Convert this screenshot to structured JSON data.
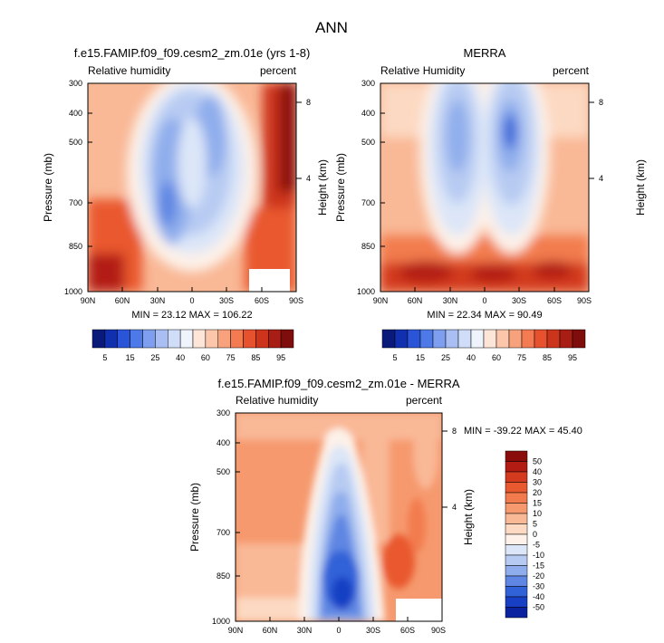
{
  "figure_title": "ANN",
  "chart_data": [
    {
      "type": "heatmap",
      "title": "f.e15.FAMIP.f09_f09.cesm2_zm.01e (yrs 1-8)",
      "subtitle_left": "Relative humidity",
      "subtitle_right": "percent",
      "ylabel": "Pressure (mb)",
      "ylabel_right": "Height (km)",
      "x_ticks": [
        "90N",
        "60N",
        "30N",
        "0",
        "30S",
        "60S",
        "90S"
      ],
      "y_ticks": [
        "300",
        "400",
        "500",
        "700",
        "850",
        "1000"
      ],
      "y_ticks_right": [
        "8",
        "4"
      ],
      "ylim": [
        1000,
        300
      ],
      "min_max_label": "MIN = 23.12  MAX = 106.22",
      "min": 23.12,
      "max": 106.22,
      "colorbar_labels": [
        "5",
        "15",
        "25",
        "40",
        "60",
        "75",
        "85",
        "95"
      ],
      "colorbar_colors": [
        "#0a1a7a",
        "#1030b0",
        "#2a55d8",
        "#4d7ae8",
        "#7e9eef",
        "#a9bff4",
        "#d0ddf8",
        "#eef3fc",
        "#fde6d8",
        "#fbc6aa",
        "#f8a27d",
        "#f47a52",
        "#e8512e",
        "#cc341c",
        "#a81e14",
        "#7e0d0b"
      ]
    },
    {
      "type": "heatmap",
      "title": "MERRA",
      "subtitle_left": "Relative Humidity",
      "subtitle_right": "percent",
      "ylabel": "Pressure (mb)",
      "ylabel_right": "Height (km)",
      "x_ticks": [
        "90N",
        "60N",
        "30N",
        "0",
        "30S",
        "60S",
        "90S"
      ],
      "y_ticks": [
        "300",
        "400",
        "500",
        "700",
        "850",
        "1000"
      ],
      "y_ticks_right": [
        "8",
        "4"
      ],
      "ylim": [
        1000,
        300
      ],
      "min_max_label": "MIN = 22.34  MAX = 90.49",
      "min": 22.34,
      "max": 90.49,
      "colorbar_labels": [
        "5",
        "15",
        "25",
        "40",
        "60",
        "75",
        "85",
        "95"
      ],
      "colorbar_colors": [
        "#0a1a7a",
        "#1030b0",
        "#2a55d8",
        "#4d7ae8",
        "#7e9eef",
        "#a9bff4",
        "#d0ddf8",
        "#eef3fc",
        "#fde6d8",
        "#fbc6aa",
        "#f8a27d",
        "#f47a52",
        "#e8512e",
        "#cc341c",
        "#a81e14",
        "#7e0d0b"
      ]
    },
    {
      "type": "heatmap",
      "title": "f.e15.FAMIP.f09_f09.cesm2_zm.01e - MERRA",
      "subtitle_left": "Relative humidity",
      "subtitle_right": "percent",
      "ylabel": "Pressure (mb)",
      "ylabel_right": "Height (km)",
      "x_ticks": [
        "90N",
        "60N",
        "30N",
        "0",
        "30S",
        "60S",
        "90S"
      ],
      "y_ticks": [
        "300",
        "400",
        "500",
        "700",
        "850",
        "1000"
      ],
      "y_ticks_right": [
        "8",
        "4"
      ],
      "ylim": [
        1000,
        300
      ],
      "min_max_label": "MIN = -39.22  MAX = 45.40",
      "min": -39.22,
      "max": 45.4,
      "colorbar_labels": [
        "50",
        "40",
        "30",
        "20",
        "15",
        "10",
        "5",
        "0",
        "-5",
        "-10",
        "-15",
        "-20",
        "-30",
        "-40",
        "-50"
      ],
      "colorbar_colors": [
        "#8a0d0b",
        "#b31c12",
        "#d33a1e",
        "#e9592f",
        "#f27b4e",
        "#f6996e",
        "#f9b896",
        "#fcd9c2",
        "#fdf1e9",
        "#dce6f8",
        "#b7cbf2",
        "#8fadec",
        "#5e86e2",
        "#3262d8",
        "#1840c4",
        "#0b22a0"
      ]
    }
  ]
}
